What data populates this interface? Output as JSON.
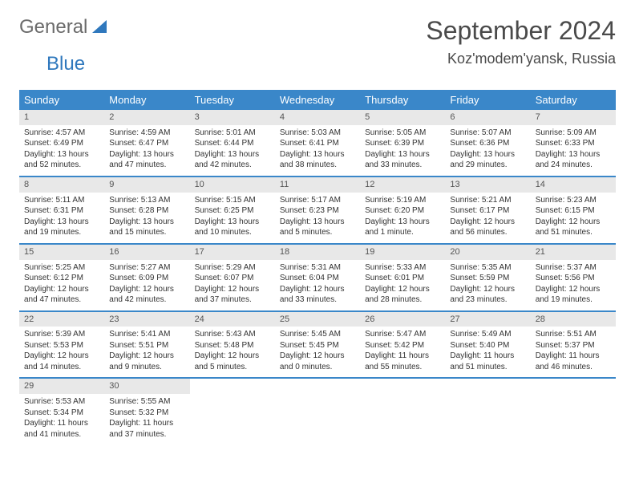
{
  "brand": {
    "general": "General",
    "blue": "Blue"
  },
  "title": "September 2024",
  "location": "Koz'modem'yansk, Russia",
  "colors": {
    "header_bg": "#3a87c9",
    "header_text": "#ffffff",
    "daynum_bg": "#e8e8e8",
    "row_border": "#3a87c9",
    "brand_gray": "#6b6b6b",
    "brand_blue": "#2f78bd"
  },
  "weekdays": [
    "Sunday",
    "Monday",
    "Tuesday",
    "Wednesday",
    "Thursday",
    "Friday",
    "Saturday"
  ],
  "weeks": [
    [
      {
        "n": "1",
        "sunrise": "Sunrise: 4:57 AM",
        "sunset": "Sunset: 6:49 PM",
        "daylight": "Daylight: 13 hours and 52 minutes."
      },
      {
        "n": "2",
        "sunrise": "Sunrise: 4:59 AM",
        "sunset": "Sunset: 6:47 PM",
        "daylight": "Daylight: 13 hours and 47 minutes."
      },
      {
        "n": "3",
        "sunrise": "Sunrise: 5:01 AM",
        "sunset": "Sunset: 6:44 PM",
        "daylight": "Daylight: 13 hours and 42 minutes."
      },
      {
        "n": "4",
        "sunrise": "Sunrise: 5:03 AM",
        "sunset": "Sunset: 6:41 PM",
        "daylight": "Daylight: 13 hours and 38 minutes."
      },
      {
        "n": "5",
        "sunrise": "Sunrise: 5:05 AM",
        "sunset": "Sunset: 6:39 PM",
        "daylight": "Daylight: 13 hours and 33 minutes."
      },
      {
        "n": "6",
        "sunrise": "Sunrise: 5:07 AM",
        "sunset": "Sunset: 6:36 PM",
        "daylight": "Daylight: 13 hours and 29 minutes."
      },
      {
        "n": "7",
        "sunrise": "Sunrise: 5:09 AM",
        "sunset": "Sunset: 6:33 PM",
        "daylight": "Daylight: 13 hours and 24 minutes."
      }
    ],
    [
      {
        "n": "8",
        "sunrise": "Sunrise: 5:11 AM",
        "sunset": "Sunset: 6:31 PM",
        "daylight": "Daylight: 13 hours and 19 minutes."
      },
      {
        "n": "9",
        "sunrise": "Sunrise: 5:13 AM",
        "sunset": "Sunset: 6:28 PM",
        "daylight": "Daylight: 13 hours and 15 minutes."
      },
      {
        "n": "10",
        "sunrise": "Sunrise: 5:15 AM",
        "sunset": "Sunset: 6:25 PM",
        "daylight": "Daylight: 13 hours and 10 minutes."
      },
      {
        "n": "11",
        "sunrise": "Sunrise: 5:17 AM",
        "sunset": "Sunset: 6:23 PM",
        "daylight": "Daylight: 13 hours and 5 minutes."
      },
      {
        "n": "12",
        "sunrise": "Sunrise: 5:19 AM",
        "sunset": "Sunset: 6:20 PM",
        "daylight": "Daylight: 13 hours and 1 minute."
      },
      {
        "n": "13",
        "sunrise": "Sunrise: 5:21 AM",
        "sunset": "Sunset: 6:17 PM",
        "daylight": "Daylight: 12 hours and 56 minutes."
      },
      {
        "n": "14",
        "sunrise": "Sunrise: 5:23 AM",
        "sunset": "Sunset: 6:15 PM",
        "daylight": "Daylight: 12 hours and 51 minutes."
      }
    ],
    [
      {
        "n": "15",
        "sunrise": "Sunrise: 5:25 AM",
        "sunset": "Sunset: 6:12 PM",
        "daylight": "Daylight: 12 hours and 47 minutes."
      },
      {
        "n": "16",
        "sunrise": "Sunrise: 5:27 AM",
        "sunset": "Sunset: 6:09 PM",
        "daylight": "Daylight: 12 hours and 42 minutes."
      },
      {
        "n": "17",
        "sunrise": "Sunrise: 5:29 AM",
        "sunset": "Sunset: 6:07 PM",
        "daylight": "Daylight: 12 hours and 37 minutes."
      },
      {
        "n": "18",
        "sunrise": "Sunrise: 5:31 AM",
        "sunset": "Sunset: 6:04 PM",
        "daylight": "Daylight: 12 hours and 33 minutes."
      },
      {
        "n": "19",
        "sunrise": "Sunrise: 5:33 AM",
        "sunset": "Sunset: 6:01 PM",
        "daylight": "Daylight: 12 hours and 28 minutes."
      },
      {
        "n": "20",
        "sunrise": "Sunrise: 5:35 AM",
        "sunset": "Sunset: 5:59 PM",
        "daylight": "Daylight: 12 hours and 23 minutes."
      },
      {
        "n": "21",
        "sunrise": "Sunrise: 5:37 AM",
        "sunset": "Sunset: 5:56 PM",
        "daylight": "Daylight: 12 hours and 19 minutes."
      }
    ],
    [
      {
        "n": "22",
        "sunrise": "Sunrise: 5:39 AM",
        "sunset": "Sunset: 5:53 PM",
        "daylight": "Daylight: 12 hours and 14 minutes."
      },
      {
        "n": "23",
        "sunrise": "Sunrise: 5:41 AM",
        "sunset": "Sunset: 5:51 PM",
        "daylight": "Daylight: 12 hours and 9 minutes."
      },
      {
        "n": "24",
        "sunrise": "Sunrise: 5:43 AM",
        "sunset": "Sunset: 5:48 PM",
        "daylight": "Daylight: 12 hours and 5 minutes."
      },
      {
        "n": "25",
        "sunrise": "Sunrise: 5:45 AM",
        "sunset": "Sunset: 5:45 PM",
        "daylight": "Daylight: 12 hours and 0 minutes."
      },
      {
        "n": "26",
        "sunrise": "Sunrise: 5:47 AM",
        "sunset": "Sunset: 5:42 PM",
        "daylight": "Daylight: 11 hours and 55 minutes."
      },
      {
        "n": "27",
        "sunrise": "Sunrise: 5:49 AM",
        "sunset": "Sunset: 5:40 PM",
        "daylight": "Daylight: 11 hours and 51 minutes."
      },
      {
        "n": "28",
        "sunrise": "Sunrise: 5:51 AM",
        "sunset": "Sunset: 5:37 PM",
        "daylight": "Daylight: 11 hours and 46 minutes."
      }
    ],
    [
      {
        "n": "29",
        "sunrise": "Sunrise: 5:53 AM",
        "sunset": "Sunset: 5:34 PM",
        "daylight": "Daylight: 11 hours and 41 minutes."
      },
      {
        "n": "30",
        "sunrise": "Sunrise: 5:55 AM",
        "sunset": "Sunset: 5:32 PM",
        "daylight": "Daylight: 11 hours and 37 minutes."
      },
      null,
      null,
      null,
      null,
      null
    ]
  ]
}
